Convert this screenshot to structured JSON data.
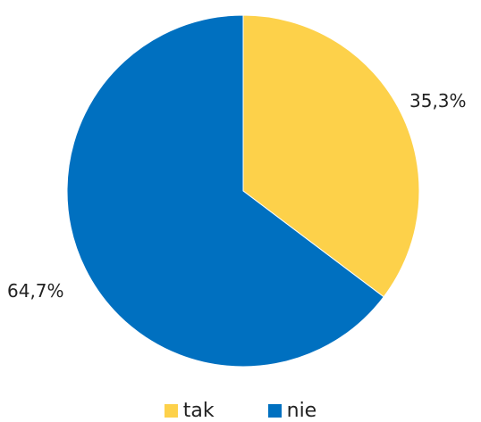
{
  "chart_data": {
    "type": "pie",
    "title": "",
    "slices": [
      {
        "label": "tak",
        "value": 35.3,
        "value_label": "35,3%",
        "color": "#FDD14A"
      },
      {
        "label": "nie",
        "value": 64.7,
        "value_label": "64,7%",
        "color": "#0070C0"
      }
    ],
    "legend": {
      "position": "bottom"
    }
  }
}
